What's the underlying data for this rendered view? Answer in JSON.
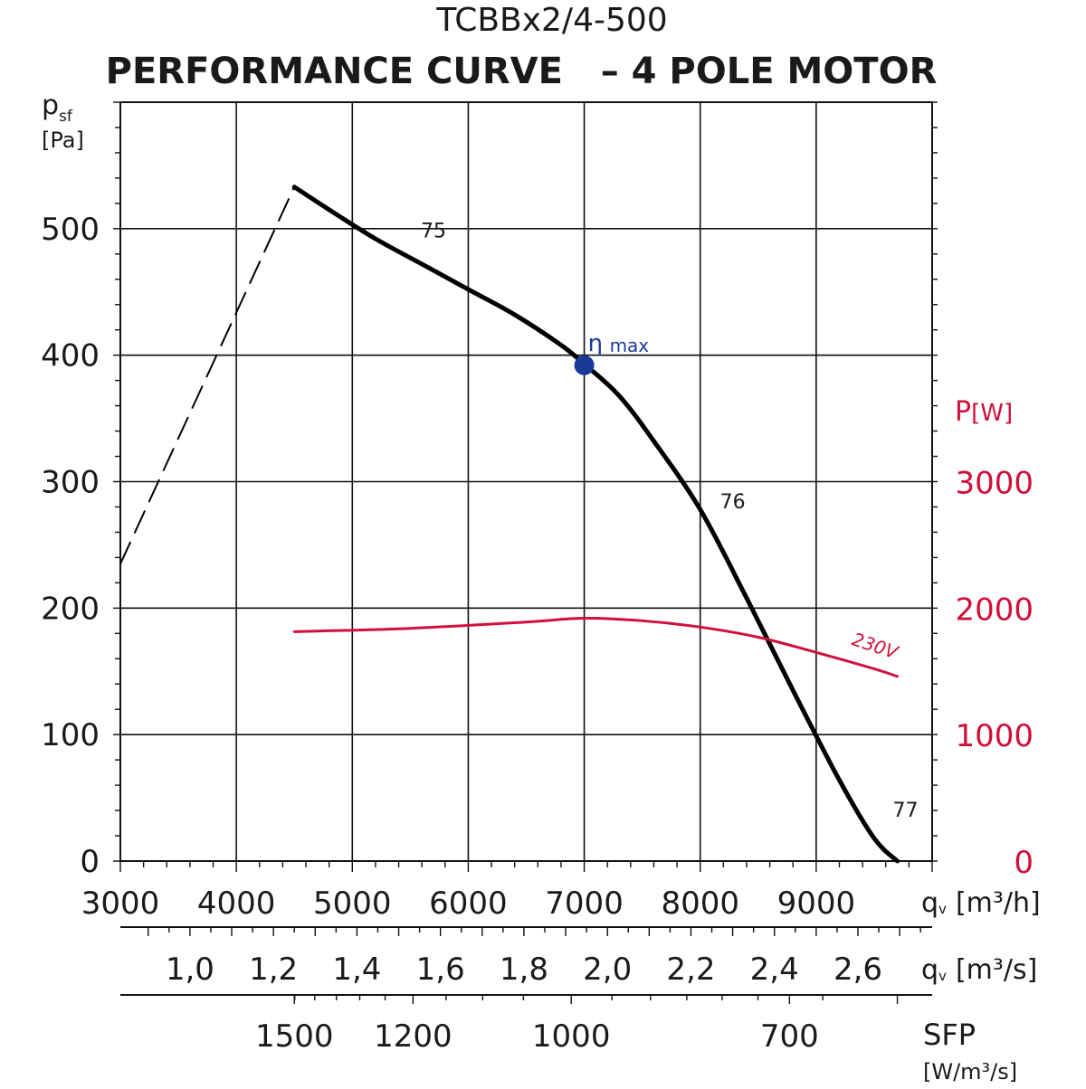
{
  "chart_data": {
    "type": "line",
    "model": "TCBBx2/4-500",
    "title": "PERFORMANCE CURVE   – 4 POLE MOTOR",
    "y_left": {
      "label_main": "p",
      "label_sub": "sf",
      "unit": "[Pa]",
      "range": [
        0,
        600
      ],
      "ticks": [
        0,
        100,
        200,
        300,
        400,
        500
      ],
      "tick_labels": [
        "0",
        "100",
        "200",
        "300",
        "400",
        "500"
      ]
    },
    "y_right": {
      "label_main": "P",
      "unit": "[W]",
      "range": [
        0,
        6000
      ],
      "ticks": [
        0,
        1000,
        2000,
        3000
      ],
      "tick_labels": [
        "0",
        "1000",
        "2000",
        "3000"
      ],
      "color": "#d0103a"
    },
    "x_axis_m3h": {
      "label_q": "q",
      "label_sub": "v",
      "unit": "[m³/h]",
      "range": [
        3000,
        10000
      ],
      "ticks": [
        3000,
        4000,
        5000,
        6000,
        7000,
        8000,
        9000
      ],
      "tick_labels": [
        "3000",
        "4000",
        "5000",
        "6000",
        "7000",
        "8000",
        "9000"
      ]
    },
    "x_axis_m3s": {
      "label_q": "q",
      "label_sub": "v",
      "unit": "[m³/s]",
      "ticks": [
        1.0,
        1.2,
        1.4,
        1.6,
        1.8,
        2.0,
        2.2,
        2.4,
        2.6
      ],
      "tick_labels": [
        "1,0",
        "1,2",
        "1,4",
        "1,6",
        "1,8",
        "2,0",
        "2,2",
        "2,4",
        "2,6"
      ]
    },
    "x_axis_sfp": {
      "label": "SFP",
      "unit": "[W/m³/s]",
      "ticks": [
        1500,
        1200,
        1000,
        700
      ],
      "tick_labels": [
        "1500",
        "1200",
        "1000",
        "700"
      ],
      "end_qv": 9700
    },
    "series": [
      {
        "kind": "pressure",
        "color": "#000000",
        "x": [
          4500,
          4800,
          5200,
          5600,
          6000,
          6400,
          6800,
          7000,
          7300,
          7600,
          8000,
          8400,
          8800,
          9200,
          9500,
          9700
        ],
        "y": [
          533,
          515,
          492,
          472,
          452,
          432,
          408,
          393,
          368,
          332,
          278,
          208,
          135,
          64,
          18,
          0
        ]
      },
      {
        "kind": "pressure-dashed",
        "color": "#000000",
        "dashed": true,
        "x": [
          3000,
          4500
        ],
        "y": [
          235,
          533
        ]
      },
      {
        "name": "230V",
        "kind": "power",
        "color": "#d0103a",
        "x": [
          4500,
          5500,
          6500,
          7000,
          7500,
          8000,
          8500,
          9000,
          9500,
          9700
        ],
        "y": [
          1814,
          1840,
          1890,
          1920,
          1900,
          1850,
          1770,
          1650,
          1520,
          1460
        ]
      }
    ],
    "annotations": [
      {
        "text": "75",
        "x": 5700,
        "y": 493
      },
      {
        "text": "76",
        "x": 8280,
        "y": 279
      },
      {
        "text": "77",
        "x": 9770,
        "y": 35
      },
      {
        "text": "230V",
        "x": 9490,
        "y": 1655,
        "color": "#d0103a",
        "rotate": 18
      }
    ],
    "eta_max": {
      "symbol": "η",
      "text": "max",
      "x": 7000,
      "y": 392,
      "color": "#1a3a9a"
    },
    "grid": true
  }
}
